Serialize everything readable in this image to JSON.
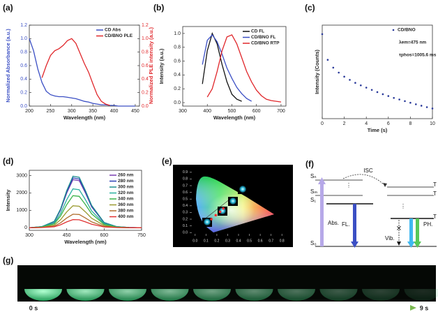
{
  "chart_data": [
    {
      "type": "line",
      "panel_label": "(a)",
      "xlabel": "Wavelength (nm)",
      "ylabel": "Normalized Absorbance (a.u.)",
      "y2label": "Normalized PLE intensity (a.u.)",
      "x": [
        200,
        210,
        220,
        230,
        240,
        250,
        260,
        270,
        280,
        290,
        300,
        310,
        320,
        330,
        340,
        350,
        360,
        370,
        380,
        390,
        400,
        410,
        420,
        430,
        440,
        450
      ],
      "series": [
        {
          "name": "CD Abs",
          "color": "#3b4fc4",
          "values": [
            1.0,
            0.82,
            0.55,
            0.35,
            0.22,
            0.17,
            0.15,
            0.14,
            0.14,
            0.13,
            0.12,
            0.11,
            0.09,
            0.07,
            0.06,
            0.04,
            0.03,
            0.02,
            0.02,
            0.01,
            0.01,
            0.0,
            0.0,
            0.0,
            0.0,
            0.0
          ]
        },
        {
          "name": "CD/BNO PLE",
          "color": "#e0272b",
          "axis": "y2",
          "values": [
            null,
            null,
            null,
            0.42,
            0.6,
            0.75,
            0.82,
            0.85,
            0.9,
            0.97,
            1.0,
            0.93,
            0.78,
            0.63,
            0.5,
            0.33,
            0.17,
            0.07,
            0.03,
            0.01,
            null,
            null,
            null,
            null,
            null,
            null
          ]
        }
      ],
      "xlim": [
        200,
        460
      ],
      "xticks": [
        200,
        250,
        300,
        350,
        400,
        450
      ],
      "ylim": [
        0,
        1.2
      ],
      "yticks": [
        {
          "value": 0,
          "label": "0.0"
        },
        {
          "value": 0.2,
          "label": "0.2"
        },
        {
          "value": 0.4,
          "label": "0.4"
        },
        {
          "value": 0.6,
          "label": "0.6"
        },
        {
          "value": 0.8,
          "label": "0.8"
        },
        {
          "value": 1.0,
          "label": "1.0"
        },
        {
          "value": 1.2,
          "label": "1.2"
        }
      ],
      "y2lim": [
        0,
        1.2
      ],
      "y2ticks": [
        {
          "value": 0,
          "label": "0.0"
        },
        {
          "value": 0.2,
          "label": "0.2"
        },
        {
          "value": 0.4,
          "label": "0.4"
        },
        {
          "value": 0.6,
          "label": "0.6"
        },
        {
          "value": 0.8,
          "label": "0.8"
        },
        {
          "value": 1.0,
          "label": "1.0"
        },
        {
          "value": 1.2,
          "label": "1.2"
        }
      ],
      "legend": "upper right"
    },
    {
      "type": "line",
      "panel_label": "(b)",
      "xlabel": "Wavelength (nm)",
      "ylabel": "Intensity (a.u.)",
      "x": [
        360,
        380,
        400,
        420,
        440,
        460,
        480,
        500,
        520,
        540,
        560,
        580,
        600,
        620,
        640,
        660,
        680,
        700
      ],
      "series": [
        {
          "name": "CD FL",
          "color": "#111111",
          "values": [
            null,
            0.27,
            0.75,
            1.0,
            0.85,
            0.55,
            0.3,
            0.12,
            0.05,
            0.02,
            null,
            null,
            null,
            null,
            null,
            null,
            null,
            null
          ]
        },
        {
          "name": "CD/BNO FL",
          "color": "#3b4fc4",
          "values": [
            null,
            0.55,
            0.9,
            0.98,
            0.88,
            0.7,
            0.5,
            0.35,
            0.22,
            0.13,
            0.06,
            0.02,
            null,
            null,
            null,
            null,
            null,
            null
          ]
        },
        {
          "name": "CD/BNO RTP",
          "color": "#e0272b",
          "values": [
            null,
            null,
            0.08,
            0.2,
            0.45,
            0.75,
            0.95,
            0.98,
            0.85,
            0.65,
            0.45,
            0.3,
            0.18,
            0.1,
            0.05,
            0.03,
            0.02,
            0.01
          ]
        }
      ],
      "xlim": [
        300,
        720
      ],
      "xticks": [
        300,
        400,
        500,
        600,
        700
      ],
      "ylim": [
        -0.05,
        1.1
      ],
      "yticks": [
        {
          "value": 0,
          "label": "0.0"
        },
        {
          "value": 0.2,
          "label": "0.2"
        },
        {
          "value": 0.4,
          "label": "0.4"
        },
        {
          "value": 0.6,
          "label": "0.6"
        },
        {
          "value": 0.8,
          "label": "0.8"
        },
        {
          "value": 1.0,
          "label": "1.0"
        }
      ],
      "legend": "upper right"
    },
    {
      "type": "scatter",
      "panel_label": "(c)",
      "xlabel": "Time (s)",
      "ylabel": "Intensity (Counts)",
      "x": [
        0,
        0.5,
        1,
        1.5,
        2,
        2.5,
        3,
        3.5,
        4,
        4.5,
        5,
        5.5,
        6,
        6.5,
        7,
        7.5,
        8,
        8.5,
        9,
        9.5,
        10
      ],
      "series": [
        {
          "name": "CD/BNO",
          "color": "#2a3a9a",
          "values": [
            6000,
            1400,
            900,
            680,
            540,
            450,
            380,
            330,
            290,
            255,
            225,
            200,
            180,
            162,
            148,
            135,
            123,
            113,
            104,
            96,
            89
          ]
        }
      ],
      "annotations": [
        "λem=475 nm",
        "τphos=1005.6 ms"
      ],
      "xlim": [
        0,
        10
      ],
      "xticks": [
        0,
        2,
        4,
        6,
        8,
        10
      ],
      "ylim": [
        50,
        10000
      ],
      "log_y": true,
      "legend": "upper right"
    },
    {
      "type": "line",
      "panel_label": "(d)",
      "xlabel": "Wavelength (nm)",
      "ylabel": "Intensity",
      "x": [
        300,
        350,
        400,
        425,
        450,
        475,
        500,
        525,
        550,
        600,
        650,
        700,
        750
      ],
      "series": [
        {
          "name": "260 nm",
          "color": "#7b3fb0",
          "values": [
            0,
            57,
            342,
            998,
            1995,
            2765,
            2708,
            1995,
            1197,
            285,
            57,
            14,
            0
          ]
        },
        {
          "name": "280 nm",
          "color": "#2b3fb5",
          "values": [
            0,
            59,
            354,
            1033,
            2065,
            2862,
            2803,
            2065,
            1239,
            295,
            59,
            15,
            0
          ]
        },
        {
          "name": "300 nm",
          "color": "#1f8f8f",
          "values": [
            0,
            61,
            366,
            1068,
            2135,
            2959,
            2898,
            2135,
            1281,
            305,
            61,
            15,
            0
          ]
        },
        {
          "name": "320 nm",
          "color": "#2ab0a0",
          "values": [
            0,
            46,
            276,
            805,
            1610,
            2231,
            2185,
            1610,
            966,
            230,
            46,
            12,
            0
          ]
        },
        {
          "name": "340 nm",
          "color": "#3cb34a",
          "values": [
            0,
            38,
            228,
            665,
            1330,
            1843,
            1805,
            1330,
            798,
            190,
            38,
            10,
            0
          ]
        },
        {
          "name": "360 nm",
          "color": "#9a9a30",
          "values": [
            0,
            26,
            156,
            455,
            910,
            1261,
            1235,
            910,
            546,
            130,
            26,
            7,
            0
          ]
        },
        {
          "name": "380 nm",
          "color": "#b07030",
          "values": [
            0,
            16,
            96,
            280,
            560,
            776,
            760,
            560,
            336,
            80,
            16,
            4,
            0
          ]
        },
        {
          "name": "400 nm",
          "color": "#e03030",
          "values": [
            0,
            10,
            58,
            168,
            336,
            466,
            456,
            336,
            202,
            48,
            10,
            2,
            0
          ]
        }
      ],
      "xlim": [
        300,
        750
      ],
      "xticks": [
        300,
        450,
        600,
        750
      ],
      "ylim": [
        -150,
        3300
      ],
      "yticks": [
        0,
        1000,
        2000,
        3000
      ],
      "legend": "upper right"
    },
    {
      "type": "scatter",
      "panel_label": "(e)",
      "background": "#000000",
      "x": [
        0.15,
        0.19,
        0.23,
        0.26
      ],
      "series": [
        {
          "name": null,
          "color": "#ff3030",
          "values": [
            0.2,
            0.26,
            0.31,
            0.36
          ]
        }
      ],
      "xlim": [
        -0.05,
        0.85
      ],
      "xticks": [
        {
          "value": 0,
          "label": "0.0"
        },
        {
          "value": 0.1,
          "label": "0.1"
        },
        {
          "value": 0.2,
          "label": "0.2"
        },
        {
          "value": 0.3,
          "label": "0.3"
        },
        {
          "value": 0.4,
          "label": "0.4"
        },
        {
          "value": 0.5,
          "label": "0.5"
        },
        {
          "value": 0.6,
          "label": "0.6"
        },
        {
          "value": 0.7,
          "label": "0.7"
        },
        {
          "value": 0.8,
          "label": "0.8"
        }
      ],
      "ylim": [
        -0.05,
        0.95
      ],
      "yticks": [
        {
          "value": 0,
          "label": "0.0"
        },
        {
          "value": 0.1,
          "label": "0.1"
        },
        {
          "value": 0.2,
          "label": "0.2"
        },
        {
          "value": 0.3,
          "label": "0.3"
        },
        {
          "value": 0.4,
          "label": "0.4"
        },
        {
          "value": 0.5,
          "label": "0.5"
        },
        {
          "value": 0.6,
          "label": "0.6"
        },
        {
          "value": 0.7,
          "label": "0.7"
        },
        {
          "value": 0.8,
          "label": "0.8"
        },
        {
          "value": 0.9,
          "label": "0.9"
        }
      ]
    }
  ],
  "diagram": {
    "panel_label": "(f)",
    "state_labels": [
      "Sₙ",
      "Sₘ",
      "S₁",
      "S₀",
      "T",
      "T",
      "T"
    ],
    "process_labels": [
      "ISC",
      "Abs.",
      "FL.",
      "Vib.",
      "PH."
    ]
  },
  "photos": {
    "panel_label": "(g)",
    "start_label": "0 s",
    "end_label": "9 s"
  }
}
